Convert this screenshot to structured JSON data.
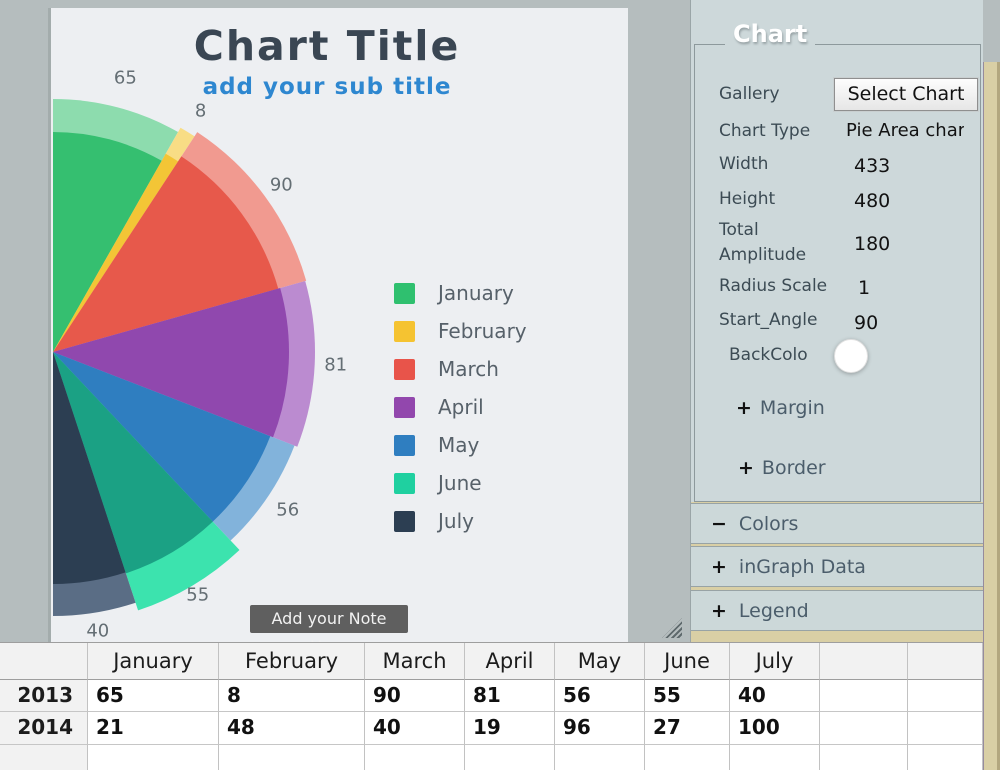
{
  "chart_area": {
    "title": "Chart Title",
    "subtitle": "add your sub title",
    "note_tooltip": "Add your Note Here",
    "bg_color": "#edeff2",
    "title_color": "#3a4653",
    "subtitle_color": "#2e87d0"
  },
  "chart_data": {
    "type": "pie",
    "title": "Chart Title",
    "subtitle": "add your sub title",
    "start_angle_deg": 90,
    "total_amplitude_deg": 180,
    "categories": [
      "January",
      "February",
      "March",
      "April",
      "May",
      "June",
      "July"
    ],
    "series": [
      {
        "name": "2013",
        "values": [
          65,
          8,
          90,
          81,
          56,
          55,
          40
        ]
      },
      {
        "name": "2014",
        "values": [
          21,
          48,
          40,
          19,
          96,
          27,
          100
        ]
      }
    ],
    "plotted_series": "2013",
    "slice_labels": [
      "65",
      "8",
      "90",
      "81",
      "56",
      "55",
      "40"
    ],
    "slice_colors": [
      "#35bf70",
      "#f3c536",
      "#e7594b",
      "#9048ae",
      "#2f7ec0",
      "#1ba184",
      "#2c3e52"
    ],
    "slice_rim_colors": [
      "#8ddcae",
      "#f8dd85",
      "#f19a90",
      "#bb8bd0",
      "#82b3db",
      "#3ce3ae",
      "#5a6d85"
    ],
    "legend_swatch_colors": [
      "#2fc06f",
      "#f5c331",
      "#e8544a",
      "#9247ad",
      "#2f7ec0",
      "#1fd0a0",
      "#2c3e52"
    ],
    "legend_position": "right-middle",
    "layout_hints": {
      "center": [
        2,
        344
      ],
      "solid_radii": [
        220,
        228,
        234,
        236,
        233,
        233,
        232
      ],
      "rim_radii": [
        253,
        258,
        263,
        262,
        259,
        272,
        264
      ],
      "label_radius": 283
    }
  },
  "panel": {
    "group_title": "Chart",
    "rows": {
      "gallery": {
        "label": "Gallery",
        "button_label": "Select Chart"
      },
      "chart_type": {
        "label": "Chart Type",
        "value": "Pie Area chart"
      },
      "width": {
        "label": "Width",
        "value": "433"
      },
      "height": {
        "label": "Height",
        "value": "480"
      },
      "amplitude": {
        "label": "Total Amplitude",
        "value": "180"
      },
      "radius_scale": {
        "label": "Radius Scale",
        "value": "1"
      },
      "start_angle": {
        "label": "Start_Angle",
        "value": "90"
      },
      "backcolor": {
        "label": "BackColor",
        "value": "#ffffff"
      }
    },
    "collapsibles": {
      "margin": {
        "icon": "+",
        "label": "Margin"
      },
      "border": {
        "icon": "+",
        "label": "Border"
      }
    },
    "sections": [
      {
        "icon": "−",
        "label": "Colors"
      },
      {
        "icon": "+",
        "label": "inGraph Data"
      },
      {
        "icon": "+",
        "label": "Legend"
      }
    ]
  },
  "table": {
    "columns": [
      "",
      "January",
      "February",
      "March",
      "April",
      "May",
      "June",
      "July",
      "",
      ""
    ],
    "rows": [
      {
        "label": "2013",
        "values": [
          "65",
          "8",
          "90",
          "81",
          "56",
          "55",
          "40",
          "",
          ""
        ]
      },
      {
        "label": "2014",
        "values": [
          "21",
          "48",
          "40",
          "19",
          "96",
          "27",
          "100",
          "",
          ""
        ]
      },
      {
        "label": "",
        "values": [
          "",
          "",
          "",
          "",
          "",
          "",
          "",
          "",
          ""
        ]
      }
    ]
  }
}
